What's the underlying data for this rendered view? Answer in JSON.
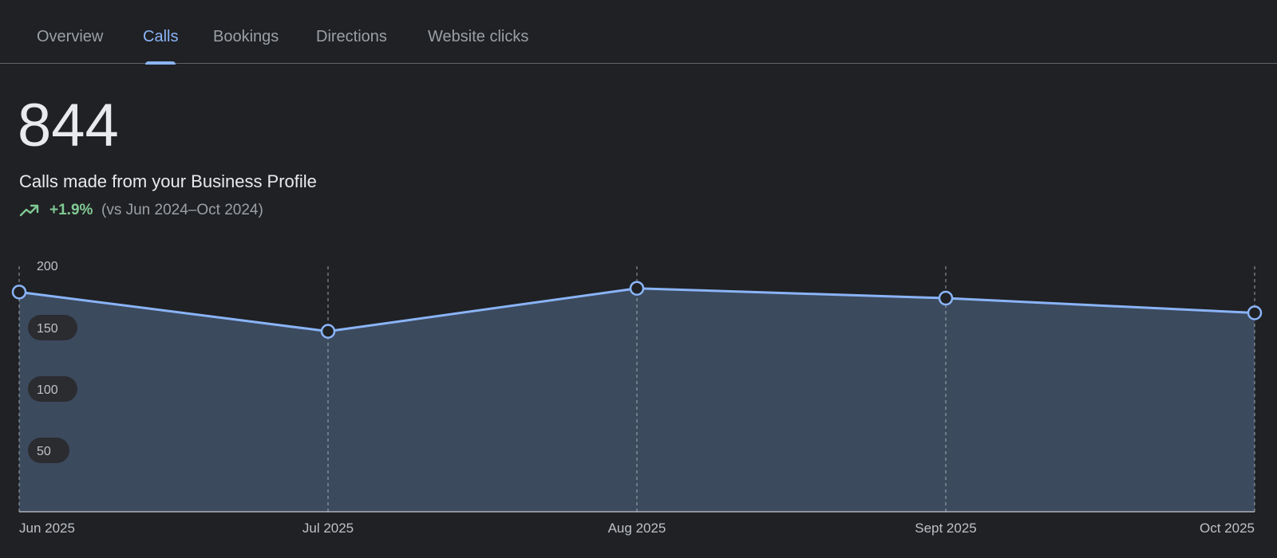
{
  "tabs": [
    {
      "label": "Overview",
      "active": false
    },
    {
      "label": "Calls",
      "active": true
    },
    {
      "label": "Bookings",
      "active": false
    },
    {
      "label": "Directions",
      "active": false
    },
    {
      "label": "Website clicks",
      "active": false
    }
  ],
  "metric": {
    "value": "844",
    "label": "Calls made from your Business Profile",
    "change": "+1.9%",
    "comparison": "(vs Jun 2024–Oct 2024)",
    "trend_icon": "trending-up-icon"
  },
  "colors": {
    "accent": "#8ab4f8",
    "positive": "#81c995",
    "area_fill": "#3c4a5e",
    "background": "#202124"
  },
  "chart_data": {
    "type": "area",
    "categories": [
      "Jun 2025",
      "Jul 2025",
      "Aug 2025",
      "Sept 2025",
      "Oct 2025"
    ],
    "series": [
      {
        "values": [
          179,
          147,
          182,
          174,
          162
        ]
      }
    ],
    "yticks": [
      "200",
      "150",
      "100",
      "50"
    ],
    "ylim": [
      0,
      200
    ],
    "grid": "vertical-dashed",
    "legend": "none",
    "title": "",
    "xlabel": "",
    "ylabel": ""
  }
}
